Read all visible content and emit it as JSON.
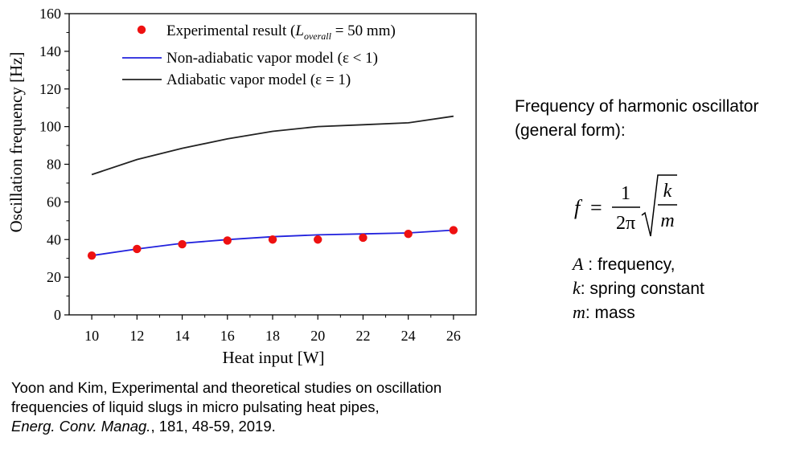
{
  "chart_data": {
    "type": "line",
    "xlabel": "Heat input [W]",
    "ylabel": "Oscillation frequency [Hz]",
    "xlim": [
      9,
      27
    ],
    "ylim": [
      0,
      160
    ],
    "x_ticks": [
      10,
      12,
      14,
      16,
      18,
      20,
      22,
      24,
      26
    ],
    "y_ticks": [
      0,
      20,
      40,
      60,
      80,
      100,
      120,
      140,
      160
    ],
    "grid": false,
    "legend_position": "top-left",
    "series": [
      {
        "name": "Experimental result (L_overall = 50 mm)",
        "style": "scatter",
        "color": "#ee1111",
        "x": [
          10,
          12,
          14,
          16,
          18,
          20,
          22,
          24,
          26
        ],
        "y": [
          31.5,
          35,
          37.5,
          39.5,
          40,
          40,
          41,
          43,
          45
        ]
      },
      {
        "name": "Non-adiabatic vapor model (ε < 1)",
        "style": "line",
        "color": "#2222dd",
        "x": [
          10,
          12,
          14,
          16,
          18,
          20,
          22,
          24,
          26
        ],
        "y": [
          31.5,
          35,
          38,
          40,
          41.5,
          42.5,
          43,
          43.5,
          45
        ]
      },
      {
        "name": "Adiabatic vapor model (ε = 1)",
        "style": "line",
        "color": "#222222",
        "x": [
          10,
          12,
          14,
          16,
          18,
          20,
          22,
          24,
          26
        ],
        "y": [
          74.5,
          82.5,
          88.5,
          93.5,
          97.5,
          100,
          101,
          102,
          105.5
        ]
      }
    ],
    "legend": {
      "entries": [
        {
          "prefix": "Experimental result (",
          "var": "L",
          "sub": "overall",
          "suffix": " = 50 mm)"
        },
        {
          "text": "Non-adiabatic vapor model (ε < 1)"
        },
        {
          "text": "Adiabatic vapor model (ε = 1)"
        }
      ]
    }
  },
  "panel": {
    "heading_line1": "Frequency of harmonic oscillator",
    "heading_line2": "(general form):",
    "formula": {
      "lhs": "f",
      "eq": "=",
      "num": "1",
      "den": "2π",
      "sqrt_num": "k",
      "sqrt_den": "m"
    },
    "definitions": [
      {
        "symbol": "A",
        "text": " : frequency,"
      },
      {
        "symbol": "k",
        "text": ": spring constant"
      },
      {
        "symbol": "m",
        "text": ": mass"
      }
    ]
  },
  "citation": {
    "line1": "Yoon and Kim, Experimental and theoretical studies on oscillation",
    "line2": "frequencies of liquid slugs in micro pulsating heat pipes,",
    "journal": "Energ. Conv. Manag.",
    "rest": ", 181, 48-59, 2019."
  }
}
